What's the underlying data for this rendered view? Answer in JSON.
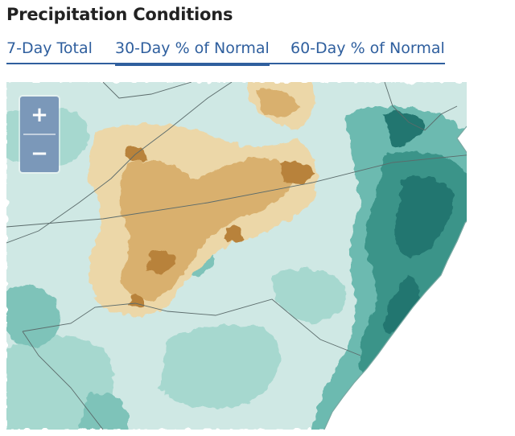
{
  "header": {
    "title": "Precipitation Conditions"
  },
  "tabs": [
    {
      "label": "7-Day Total",
      "active": false
    },
    {
      "label": "30-Day % of Normal",
      "active": true
    },
    {
      "label": "60-Day % of Normal",
      "active": false
    }
  ],
  "map": {
    "zoom_in_label": "+",
    "zoom_out_label": "−",
    "colors": {
      "dry_strong": "#b8823a",
      "dry": "#d7ad6c",
      "dry_light": "#ecd7a8",
      "near_normal": "#cfe8e4",
      "wet_light": "#9fd4cc",
      "wet": "#5fb1a6",
      "wet_strong": "#2f8880",
      "wet_darkest": "#1e6f69",
      "boundary": "#5b6b6b"
    }
  }
}
